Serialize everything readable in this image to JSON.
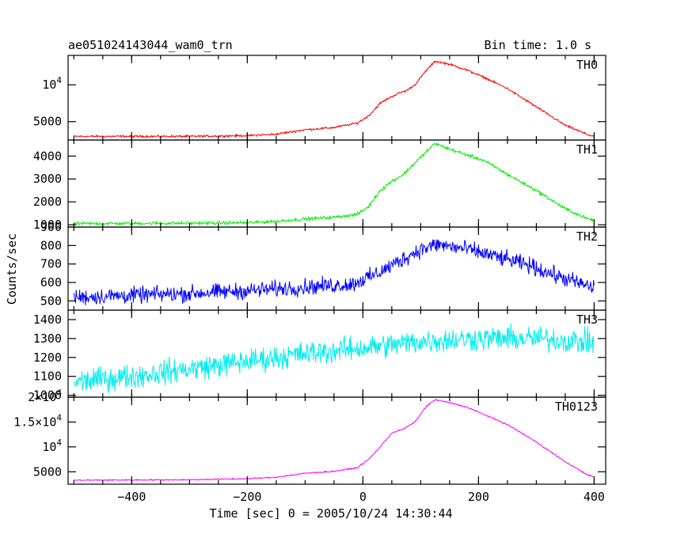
{
  "header": {
    "title": "ae051024143044_wam0_trn",
    "bin_time": "Bin time: 1.0 s"
  },
  "chart_data": {
    "type": "line",
    "xlabel": "Time [sec] 0 = 2005/10/24 14:30:44",
    "ylabel": "Counts/sec",
    "xlim": [
      -510,
      420
    ],
    "x_ticks": [
      -400,
      -200,
      0,
      200,
      400
    ],
    "x_tick_labels": [
      "−400",
      "−200",
      "0",
      "200",
      "400"
    ],
    "panels": [
      {
        "name": "TH0",
        "color": "#ff0000",
        "ylim": [
          2500,
          14000
        ],
        "y_ticks": [
          5000,
          10000
        ],
        "y_tick_labels": [
          [
            "5000",
            ""
          ],
          [
            "10",
            "4"
          ]
        ],
        "noise": 120,
        "points": [
          [
            -500,
            3000
          ],
          [
            -300,
            3000
          ],
          [
            -200,
            3100
          ],
          [
            -150,
            3300
          ],
          [
            -100,
            3900
          ],
          [
            -50,
            4200
          ],
          [
            -10,
            4800
          ],
          [
            10,
            5800
          ],
          [
            30,
            7500
          ],
          [
            45,
            8200
          ],
          [
            60,
            8800
          ],
          [
            75,
            9200
          ],
          [
            90,
            10000
          ],
          [
            110,
            12000
          ],
          [
            125,
            13200
          ],
          [
            150,
            12800
          ],
          [
            180,
            12000
          ],
          [
            210,
            11000
          ],
          [
            250,
            9500
          ],
          [
            300,
            7000
          ],
          [
            350,
            4500
          ],
          [
            390,
            3200
          ],
          [
            400,
            3000
          ]
        ]
      },
      {
        "name": "TH1",
        "color": "#00ee00",
        "ylim": [
          900,
          4700
        ],
        "y_ticks": [
          1000,
          2000,
          3000,
          4000
        ],
        "y_tick_labels": [
          [
            "1000",
            ""
          ],
          [
            "2000",
            ""
          ],
          [
            "3000",
            ""
          ],
          [
            "4000",
            ""
          ]
        ],
        "noise": 60,
        "points": [
          [
            -500,
            1050
          ],
          [
            -300,
            1070
          ],
          [
            -200,
            1090
          ],
          [
            -150,
            1150
          ],
          [
            -100,
            1250
          ],
          [
            -50,
            1330
          ],
          [
            -10,
            1450
          ],
          [
            10,
            1800
          ],
          [
            30,
            2500
          ],
          [
            50,
            2900
          ],
          [
            70,
            3200
          ],
          [
            90,
            3700
          ],
          [
            110,
            4200
          ],
          [
            125,
            4550
          ],
          [
            150,
            4300
          ],
          [
            180,
            4050
          ],
          [
            210,
            3800
          ],
          [
            250,
            3200
          ],
          [
            300,
            2500
          ],
          [
            350,
            1700
          ],
          [
            390,
            1250
          ],
          [
            400,
            1200
          ]
        ]
      },
      {
        "name": "TH2",
        "color": "#0000ff",
        "ylim": [
          450,
          900
        ],
        "y_ticks": [
          500,
          600,
          700,
          800,
          900
        ],
        "y_tick_labels": [
          [
            "500",
            ""
          ],
          [
            "600",
            ""
          ],
          [
            "700",
            ""
          ],
          [
            "800",
            ""
          ],
          [
            "900",
            ""
          ]
        ],
        "noise": 38,
        "points": [
          [
            -500,
            520
          ],
          [
            -300,
            540
          ],
          [
            -200,
            555
          ],
          [
            -100,
            575
          ],
          [
            -20,
            590
          ],
          [
            20,
            640
          ],
          [
            60,
            710
          ],
          [
            100,
            780
          ],
          [
            130,
            805
          ],
          [
            180,
            780
          ],
          [
            230,
            740
          ],
          [
            290,
            690
          ],
          [
            340,
            630
          ],
          [
            380,
            590
          ],
          [
            400,
            570
          ]
        ]
      },
      {
        "name": "TH3",
        "color": "#00eeee",
        "ylim": [
          990,
          1450
        ],
        "y_ticks": [
          1000,
          1100,
          1200,
          1300,
          1400
        ],
        "y_tick_labels": [
          [
            "1000",
            ""
          ],
          [
            "1100",
            ""
          ],
          [
            "1200",
            ""
          ],
          [
            "1300",
            ""
          ],
          [
            "1400",
            ""
          ]
        ],
        "noise": 55,
        "points": [
          [
            -500,
            1070
          ],
          [
            -400,
            1100
          ],
          [
            -300,
            1140
          ],
          [
            -200,
            1180
          ],
          [
            -100,
            1220
          ],
          [
            0,
            1250
          ],
          [
            100,
            1285
          ],
          [
            200,
            1300
          ],
          [
            300,
            1300
          ],
          [
            400,
            1280
          ]
        ]
      },
      {
        "name": "TH0123",
        "color": "#ff00ff",
        "ylim": [
          2500,
          20000
        ],
        "y_ticks": [
          5000,
          10000,
          15000,
          20000
        ],
        "y_tick_labels": [
          [
            "5000",
            ""
          ],
          [
            "10",
            "4"
          ],
          [
            "1.5×10",
            "4"
          ],
          [
            "2×10",
            "4"
          ]
        ],
        "noise": 110,
        "points": [
          [
            -500,
            3300
          ],
          [
            -300,
            3400
          ],
          [
            -200,
            3600
          ],
          [
            -150,
            3900
          ],
          [
            -100,
            4700
          ],
          [
            -50,
            5100
          ],
          [
            -10,
            5800
          ],
          [
            10,
            7500
          ],
          [
            30,
            10000
          ],
          [
            50,
            12800
          ],
          [
            70,
            13600
          ],
          [
            90,
            15000
          ],
          [
            110,
            18200
          ],
          [
            125,
            19500
          ],
          [
            150,
            18900
          ],
          [
            180,
            18000
          ],
          [
            210,
            16500
          ],
          [
            250,
            14500
          ],
          [
            300,
            11000
          ],
          [
            350,
            7000
          ],
          [
            390,
            4300
          ],
          [
            400,
            4000
          ]
        ]
      }
    ]
  }
}
